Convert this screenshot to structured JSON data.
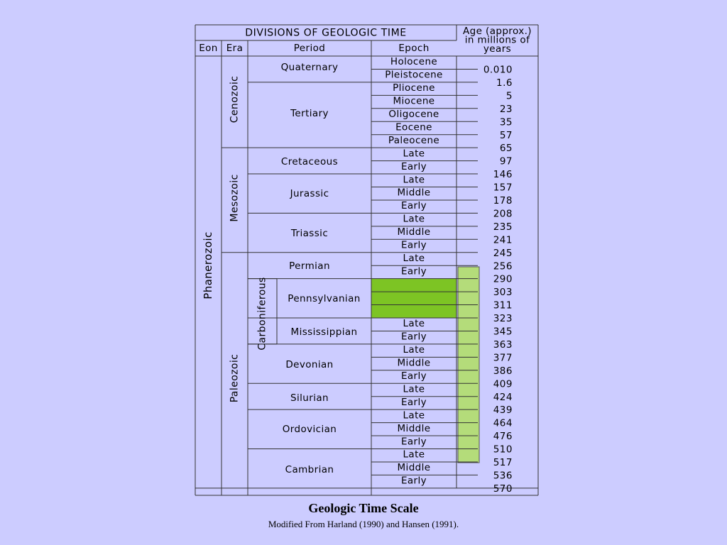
{
  "header": {
    "title": "DIVISIONS OF GEOLOGIC TIME",
    "age_header": [
      "Age (approx.)",
      "in millions of",
      "years"
    ],
    "col_eon": "Eon",
    "col_era": "Era",
    "col_period": "Period",
    "col_epoch": "Epoch"
  },
  "eon": "Phanerozoic",
  "eras": [
    "Cenozoic",
    "Mesozoic",
    "Paleozoic"
  ],
  "carboniferous": "Carboniferous",
  "periods": [
    "Quaternary",
    "Tertiary",
    "Cretaceous",
    "Jurassic",
    "Triassic",
    "Permian",
    "Pennsylvanian",
    "Mississippian",
    "Devonian",
    "Silurian",
    "Ordovician",
    "Cambrian"
  ],
  "epochs": [
    "Holocene",
    "Pleistocene",
    "Pliocene",
    "Miocene",
    "Oligocene",
    "Eocene",
    "Paleocene",
    "Late",
    "Early",
    "Late",
    "Middle",
    "Early",
    "Late",
    "Middle",
    "Early",
    "Late",
    "Early",
    "",
    "Late",
    "Early",
    "Late",
    "Middle",
    "Early",
    "Late",
    "Early",
    "Late",
    "Middle",
    "Early",
    "Late",
    "Middle",
    "Early"
  ],
  "ages": [
    "0.010",
    "1.6",
    "5",
    "23",
    "35",
    "57",
    "65",
    "97",
    "146",
    "157",
    "178",
    "208",
    "235",
    "241",
    "245",
    "256",
    "290",
    "303",
    "311",
    "323",
    "345",
    "363",
    "377",
    "386",
    "409",
    "424",
    "439",
    "464",
    "476",
    "510",
    "517",
    "536",
    "570"
  ],
  "colors": {
    "background": "#ccccff",
    "highlight_cell": "#7dc424",
    "highlight_bar": "#b4dc7a",
    "line": "#333333"
  },
  "caption": {
    "title": "Geologic Time Scale",
    "subtitle": "Modified From Harland (1990) and Hansen (1991)."
  }
}
